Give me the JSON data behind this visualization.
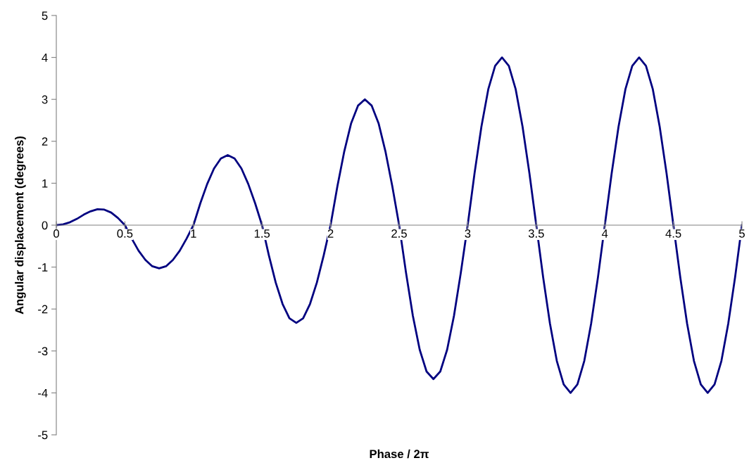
{
  "chart_data": {
    "type": "line",
    "xlabel": "Phase / 2π",
    "ylabel": "Angular displacement (degrees)",
    "xlim": [
      0,
      5
    ],
    "ylim": [
      -5,
      5
    ],
    "xticks": [
      0,
      0.5,
      1,
      1.5,
      2,
      2.5,
      3,
      3.5,
      4,
      4.5,
      5
    ],
    "yticks": [
      -5,
      -4,
      -3,
      -2,
      -1,
      0,
      1,
      2,
      3,
      4,
      5
    ],
    "grid": false,
    "marker": "none",
    "line_style": "solid",
    "series": [
      {
        "color": "#000080",
        "x": [
          0,
          0.05,
          0.1,
          0.15,
          0.2,
          0.25,
          0.3,
          0.35,
          0.4,
          0.45,
          0.5,
          0.55,
          0.6,
          0.65,
          0.7,
          0.75,
          0.8,
          0.85,
          0.9,
          0.95,
          1,
          1.05,
          1.1,
          1.15,
          1.2,
          1.25,
          1.3,
          1.35,
          1.4,
          1.45,
          1.5,
          1.55,
          1.6,
          1.65,
          1.7,
          1.75,
          1.8,
          1.85,
          1.9,
          1.95,
          2,
          2.05,
          2.1,
          2.15,
          2.2,
          2.25,
          2.3,
          2.35,
          2.4,
          2.45,
          2.5,
          2.55,
          2.6,
          2.65,
          2.7,
          2.75,
          2.8,
          2.85,
          2.9,
          2.95,
          3,
          3.05,
          3.1,
          3.15,
          3.2,
          3.25,
          3.3,
          3.35,
          3.4,
          3.45,
          3.5,
          3.55,
          3.6,
          3.65,
          3.7,
          3.75,
          3.8,
          3.85,
          3.9,
          3.95,
          4,
          4.05,
          4.1,
          4.15,
          4.2,
          4.25,
          4.3,
          4.35,
          4.4,
          4.45,
          4.5,
          4.55,
          4.6,
          4.65,
          4.7,
          4.75,
          4.8,
          4.85,
          4.9,
          4.95,
          5
        ],
        "values": [
          0,
          0.02,
          0.07,
          0.15,
          0.25,
          0.33,
          0.38,
          0.37,
          0.3,
          0.17,
          0,
          -0.32,
          -0.61,
          -0.83,
          -0.98,
          -1.03,
          -0.98,
          -0.83,
          -0.61,
          -0.32,
          0,
          0.52,
          0.98,
          1.35,
          1.59,
          1.67,
          1.59,
          1.35,
          0.98,
          0.52,
          0,
          -0.72,
          -1.37,
          -1.88,
          -2.22,
          -2.33,
          -2.22,
          -1.88,
          -1.37,
          -0.72,
          0,
          0.93,
          1.76,
          2.43,
          2.85,
          3,
          2.85,
          2.43,
          1.76,
          0.93,
          0,
          -1.13,
          -2.16,
          -2.97,
          -3.49,
          -3.67,
          -3.49,
          -2.97,
          -2.16,
          -1.13,
          0,
          1.24,
          2.35,
          3.24,
          3.8,
          4,
          3.8,
          3.24,
          2.35,
          1.24,
          0,
          -1.24,
          -2.35,
          -3.24,
          -3.8,
          -4,
          -3.8,
          -3.24,
          -2.35,
          -1.24,
          0,
          1.24,
          2.35,
          3.24,
          3.8,
          4,
          3.8,
          3.24,
          2.35,
          1.24,
          0,
          -1.24,
          -2.35,
          -3.24,
          -3.8,
          -4,
          -3.8,
          -3.24,
          -2.35,
          -1.24,
          0
        ]
      }
    ]
  }
}
